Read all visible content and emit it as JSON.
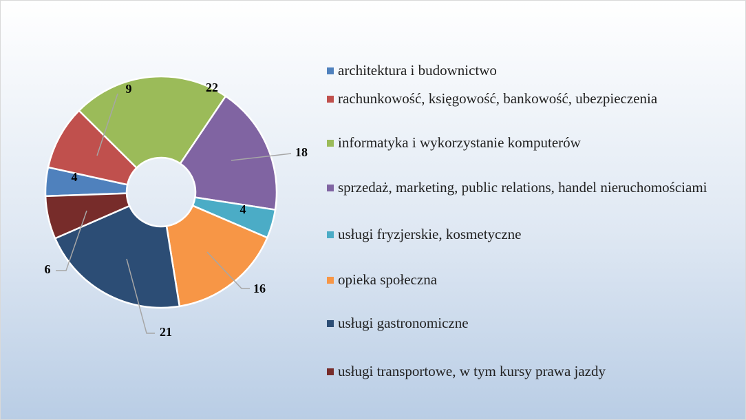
{
  "chart_data": {
    "type": "donut",
    "categories": [
      "architektura i budownictwo",
      "rachunkowość, księgowość, bankowość, ubezpieczenia",
      "informatyka i wykorzystanie komputerów",
      "sprzedaż, marketing, public relations, handel nieruchomościami",
      "usługi fryzjerskie, kosmetyczne",
      "opieka społeczna",
      "usługi gastronomiczne",
      "usługi transportowe, w tym kursy prawa jazdy"
    ],
    "values": [
      4,
      9,
      22,
      18,
      4,
      16,
      21,
      6
    ],
    "colors": [
      "#4f81bd",
      "#c0504d",
      "#9bbb59",
      "#8064a2",
      "#4bacc6",
      "#f79646",
      "#2c4d75",
      "#772c2a"
    ],
    "legend": "right"
  }
}
